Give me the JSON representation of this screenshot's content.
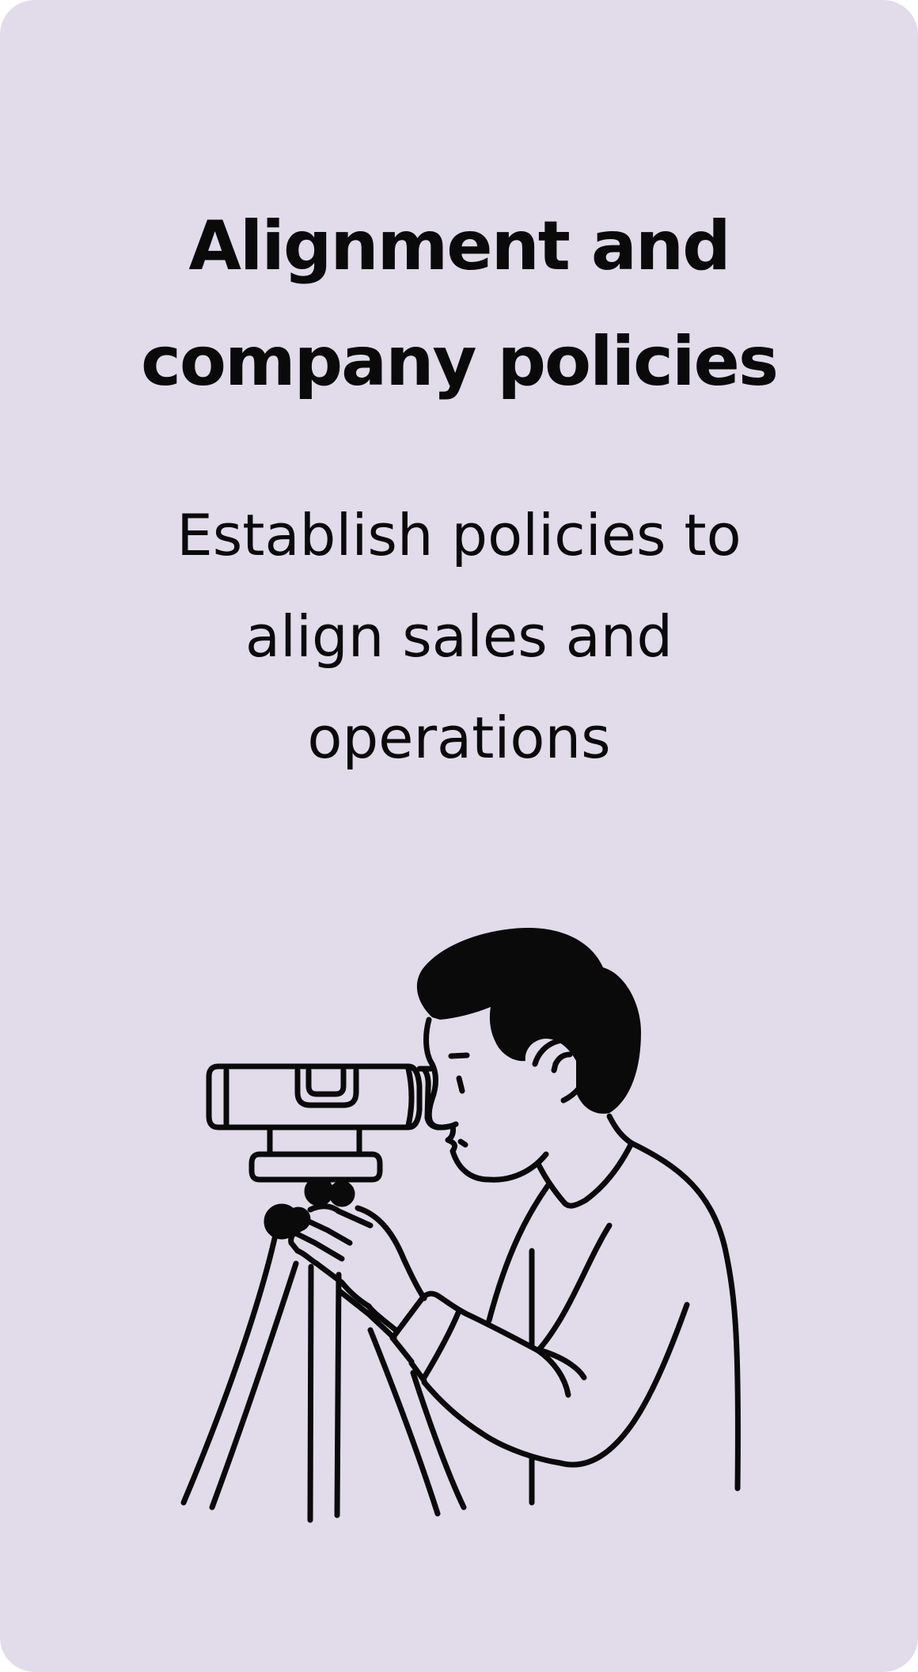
{
  "card": {
    "title": "Alignment and company policies",
    "subtitle": "Establish policies to align sales and operations",
    "background_color": "#e1dbea",
    "text_color": "#0a0a0a"
  },
  "illustration": {
    "icon": "person-looking-through-surveying-level-icon"
  }
}
